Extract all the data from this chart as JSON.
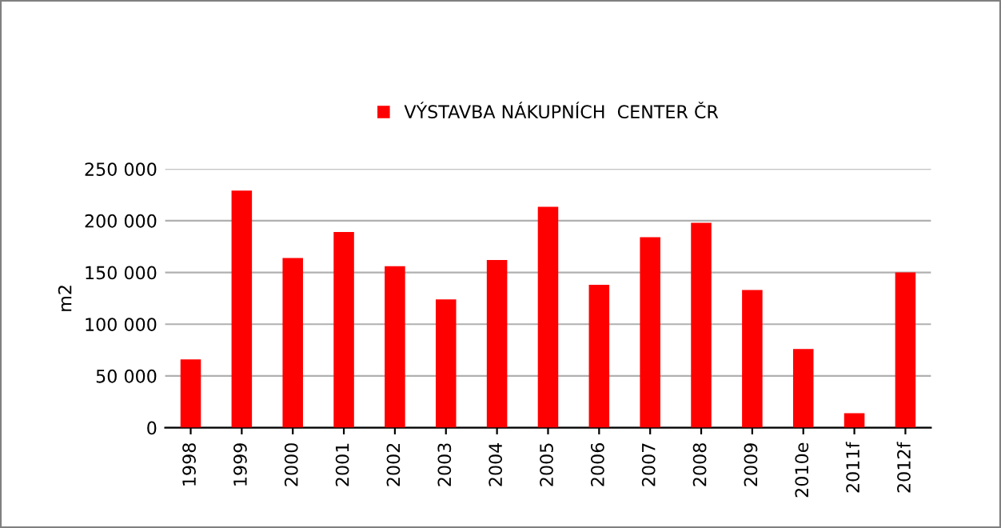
{
  "chart_data": {
    "type": "bar",
    "categories": [
      "1998",
      "1999",
      "2000",
      "2001",
      "2002",
      "2003",
      "2004",
      "2005",
      "2006",
      "2007",
      "2008",
      "2009",
      "2010e",
      "2011f",
      "2012f"
    ],
    "series": [
      {
        "name": "VÝSTAVBA NÁKUPNÍCH  CENTER ČR",
        "color": "#ff0000",
        "values": [
          66000,
          229000,
          164000,
          189000,
          156000,
          124000,
          162000,
          213500,
          138000,
          184000,
          198000,
          133000,
          76000,
          14000,
          150000
        ]
      }
    ],
    "ylabel": "m2",
    "ylim": [
      0,
      250000
    ],
    "yticks": [
      {
        "value": 0,
        "label": "0"
      },
      {
        "value": 50000,
        "label": "50 000"
      },
      {
        "value": 100000,
        "label": "100 000"
      },
      {
        "value": 150000,
        "label": "150 000"
      },
      {
        "value": 200000,
        "label": "200 000"
      },
      {
        "value": 250000,
        "label": "250 000"
      }
    ],
    "grid": "y",
    "legend": "top"
  }
}
